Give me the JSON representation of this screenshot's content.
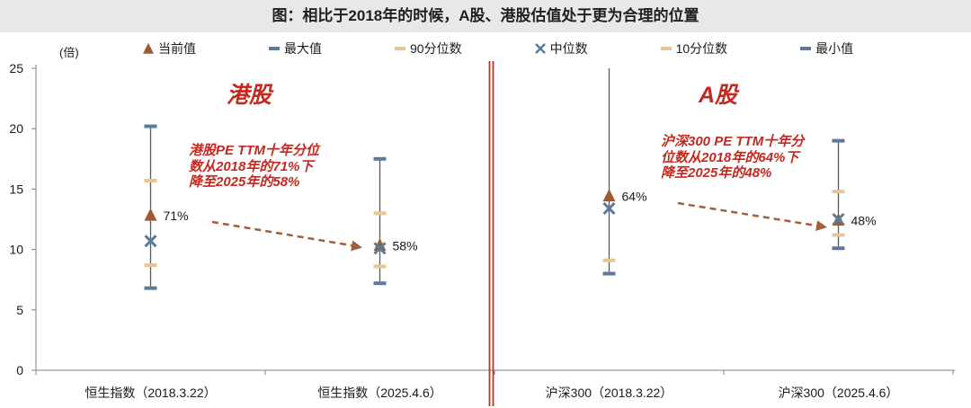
{
  "title": "图：相比于2018年的时候，A股、港股估值处于更为合理的位置",
  "chart_data": {
    "type": "scatter",
    "ylabel": "(倍)",
    "ylim": [
      0,
      25
    ],
    "yticks": [
      0,
      5,
      10,
      15,
      20,
      25
    ],
    "grid": false,
    "legend_position": "top",
    "categories": [
      "恒生指数（2018.3.22）",
      "恒生指数（2025.4.6）",
      "沪深300（2018.3.22）",
      "沪深300（2025.4.6）"
    ],
    "series": [
      {
        "name": "当前值",
        "marker": "triangle",
        "color": "#9d5a35",
        "values": [
          12.8,
          10.3,
          14.4,
          12.4
        ],
        "data_labels": [
          "71%",
          "58%",
          "64%",
          "48%"
        ]
      },
      {
        "name": "最大值",
        "marker": "dash",
        "color": "#5b7b9b",
        "values": [
          20.2,
          17.5,
          25.0,
          19.0
        ]
      },
      {
        "name": "90分位数",
        "marker": "dash",
        "color": "#e4c792",
        "values": [
          15.7,
          13.0,
          null,
          14.8
        ]
      },
      {
        "name": "中位数",
        "marker": "cross",
        "color": "#5b7b9b",
        "values": [
          10.7,
          10.1,
          13.4,
          12.5
        ]
      },
      {
        "name": "10分位数",
        "marker": "dash",
        "color": "#e4c792",
        "values": [
          8.7,
          8.6,
          9.1,
          11.2
        ]
      },
      {
        "name": "最小值",
        "marker": "dash",
        "color": "#5b7b9b",
        "values": [
          6.8,
          7.2,
          8.0,
          10.1
        ]
      }
    ],
    "group_labels": [
      "港股",
      "A股"
    ],
    "annotations": [
      [
        "港股PE TTM十年分位",
        "数从2018年的71%下",
        "降至2025年的58%"
      ],
      [
        "沪深300 PE TTM十年分",
        "位数从2018年的64%下",
        "降至2025年的48%"
      ]
    ]
  },
  "colors": {
    "title_bar": "#e8e8e8",
    "highlight_text": "#c4281f",
    "range_line": "#5a5a5a",
    "divider": "#a0412d",
    "arrow": "#a25f3b",
    "axis": "#808080"
  }
}
